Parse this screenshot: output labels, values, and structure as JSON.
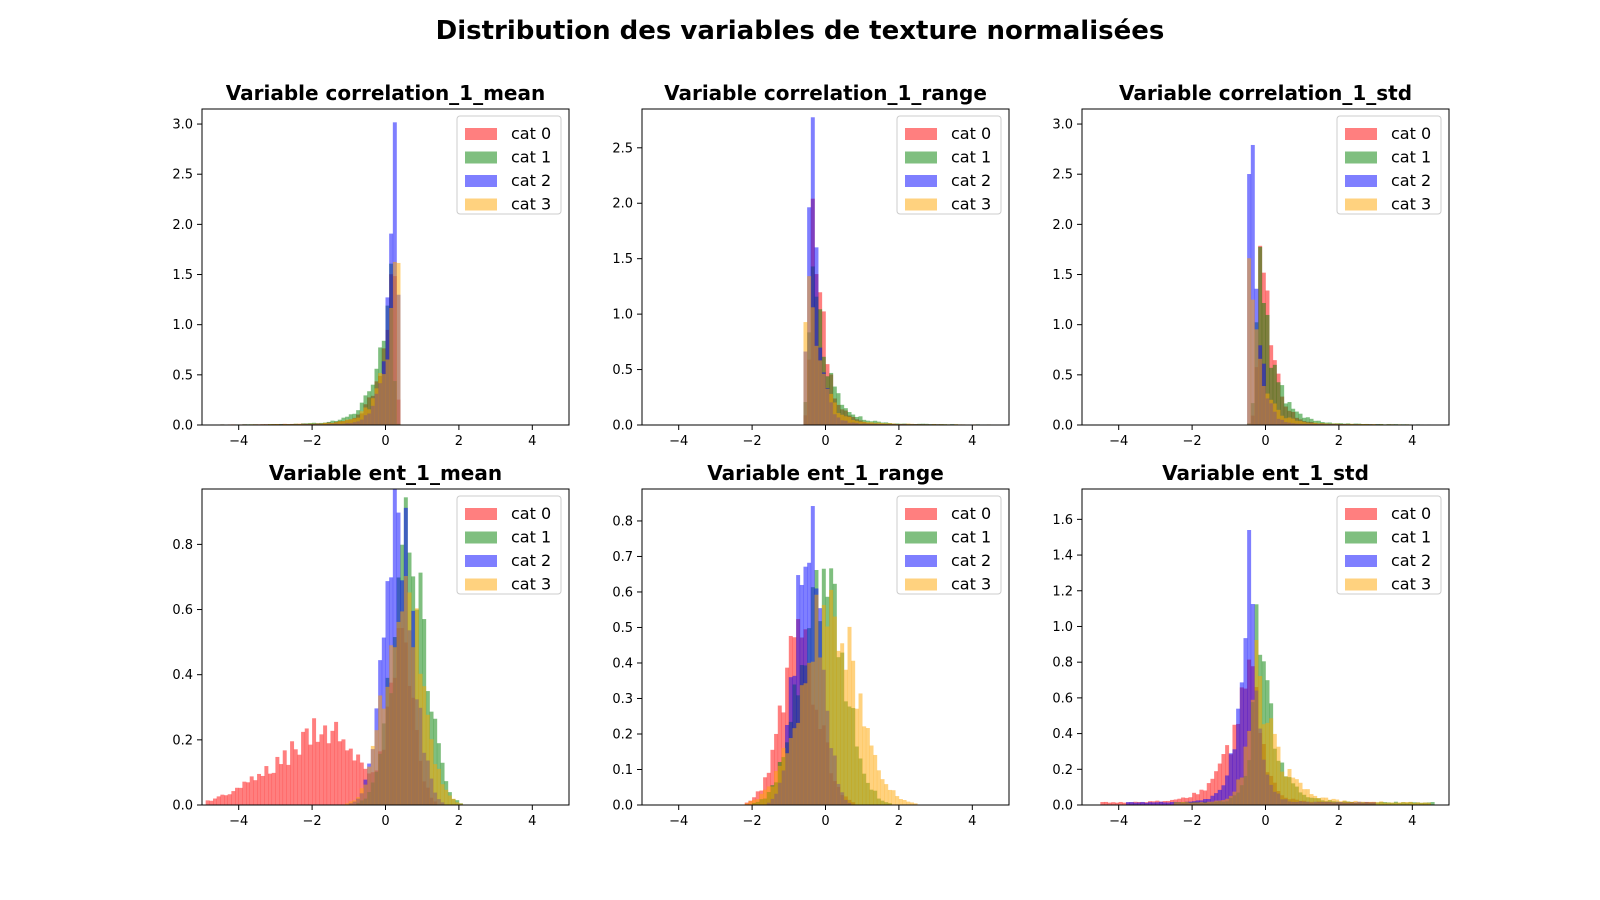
{
  "figure": {
    "title": "Distribution des variables de texture normalisées"
  },
  "colors": {
    "cat0": "#ff0000",
    "cat1": "#008000",
    "cat2": "#0000ff",
    "cat3": "#ffa500"
  },
  "legend_labels": [
    "cat 0",
    "cat 1",
    "cat 2",
    "cat 3"
  ],
  "chart_data": [
    {
      "type": "histogram",
      "title": "Variable correlation_1_mean",
      "xlim": [
        -5,
        5
      ],
      "ylim": [
        0,
        3.15
      ],
      "xticks": [
        -4,
        -2,
        0,
        2,
        4
      ],
      "yticks": [
        0.0,
        0.5,
        1.0,
        1.5,
        2.0,
        2.5,
        3.0
      ],
      "legend": "top-right",
      "series": [
        {
          "name": "cat 0",
          "dist": {
            "kind": "leftskew",
            "peak": 0.22,
            "height": 1.95,
            "cutoff": 0.42,
            "lscale": 0.5,
            "tail": 0.03,
            "tmin": -4.6
          }
        },
        {
          "name": "cat 1",
          "dist": {
            "kind": "leftskew",
            "peak": 0.15,
            "height": 1.55,
            "cutoff": 0.42,
            "lscale": 0.6,
            "tail": 0.03,
            "tmin": -4.6
          }
        },
        {
          "name": "cat 2",
          "dist": {
            "kind": "leftskew",
            "peak": 0.27,
            "height": 3.0,
            "cutoff": 0.42,
            "lscale": 0.35,
            "tail": 0.02,
            "tmin": -4.6
          }
        },
        {
          "name": "cat 3",
          "dist": {
            "kind": "leftskew",
            "peak": 0.35,
            "height": 1.75,
            "cutoff": 0.42,
            "lscale": 0.55,
            "tail": 0.03,
            "tmin": -4.6
          }
        }
      ]
    },
    {
      "type": "histogram",
      "title": "Variable correlation_1_range",
      "xlim": [
        -5,
        5
      ],
      "ylim": [
        0,
        2.85
      ],
      "xticks": [
        -4,
        -2,
        0,
        2,
        4
      ],
      "yticks": [
        0.0,
        0.5,
        1.0,
        1.5,
        2.0,
        2.5
      ],
      "legend": "top-right",
      "series": [
        {
          "name": "cat 0",
          "dist": {
            "kind": "rightskew",
            "peak": -0.3,
            "height": 2.0,
            "cutoff": -0.6,
            "rscale": 0.45,
            "tail": 0.02,
            "tmax": 4.8
          }
        },
        {
          "name": "cat 1",
          "dist": {
            "kind": "rightskew",
            "peak": -0.35,
            "height": 1.5,
            "cutoff": -0.6,
            "rscale": 0.6,
            "tail": 0.03,
            "tmax": 4.8
          }
        },
        {
          "name": "cat 2",
          "dist": {
            "kind": "rightskew",
            "peak": -0.38,
            "height": 2.72,
            "cutoff": -0.6,
            "rscale": 0.3,
            "tail": 0.02,
            "tmax": 4.8
          }
        },
        {
          "name": "cat 3",
          "dist": {
            "kind": "rightskew",
            "peak": -0.45,
            "height": 1.45,
            "cutoff": -0.6,
            "rscale": 0.5,
            "tail": 0.03,
            "tmax": 4.8
          }
        }
      ]
    },
    {
      "type": "histogram",
      "title": "Variable correlation_1_std",
      "xlim": [
        -5,
        5
      ],
      "ylim": [
        0,
        3.15
      ],
      "xticks": [
        -4,
        -2,
        0,
        2,
        4
      ],
      "yticks": [
        0.0,
        0.5,
        1.0,
        1.5,
        2.0,
        2.5,
        3.0
      ],
      "legend": "top-right",
      "series": [
        {
          "name": "cat 0",
          "dist": {
            "kind": "rightskew",
            "peak": -0.1,
            "height": 2.1,
            "cutoff": -0.55,
            "rscale": 0.45,
            "tail": 0.02,
            "tmax": 4.5
          }
        },
        {
          "name": "cat 1",
          "dist": {
            "kind": "rightskew",
            "peak": -0.15,
            "height": 1.55,
            "cutoff": -0.55,
            "rscale": 0.6,
            "tail": 0.03,
            "tmax": 4.5
          }
        },
        {
          "name": "cat 2",
          "dist": {
            "kind": "rightskew",
            "peak": -0.38,
            "height": 3.0,
            "cutoff": -0.55,
            "rscale": 0.3,
            "tail": 0.02,
            "tmax": 4.5
          }
        },
        {
          "name": "cat 3",
          "dist": {
            "kind": "rightskew",
            "peak": -0.45,
            "height": 1.55,
            "cutoff": -0.55,
            "rscale": 0.5,
            "tail": 0.03,
            "tmax": 4.5
          }
        }
      ]
    },
    {
      "type": "histogram",
      "title": "Variable ent_1_mean",
      "xlim": [
        -5,
        5
      ],
      "ylim": [
        0,
        0.97
      ],
      "xticks": [
        -4,
        -2,
        0,
        2,
        4
      ],
      "yticks": [
        0.0,
        0.2,
        0.4,
        0.6,
        0.8
      ],
      "legend": "top-right",
      "series": [
        {
          "name": "cat 0",
          "dist": {
            "kind": "mix",
            "comps": [
              [
                0.45,
                0.32,
                0.45
              ],
              [
                -1.5,
                0.9,
                0.22
              ],
              [
                -3.2,
                0.9,
                0.07
              ]
            ],
            "min": -4.9,
            "max": 1.8
          }
        },
        {
          "name": "cat 1",
          "dist": {
            "kind": "mix",
            "comps": [
              [
                0.65,
                0.45,
                0.8
              ]
            ],
            "min": -2.0,
            "max": 2.8
          }
        },
        {
          "name": "cat 2",
          "dist": {
            "kind": "mix",
            "comps": [
              [
                0.35,
                0.4,
                0.9
              ]
            ],
            "min": -2.0,
            "max": 1.8
          }
        },
        {
          "name": "cat 3",
          "dist": {
            "kind": "mix",
            "comps": [
              [
                0.5,
                0.5,
                0.65
              ]
            ],
            "min": -2.0,
            "max": 2.2
          }
        }
      ]
    },
    {
      "type": "histogram",
      "title": "Variable ent_1_range",
      "xlim": [
        -5,
        5
      ],
      "ylim": [
        0,
        0.89
      ],
      "xticks": [
        -4,
        -2,
        0,
        2,
        4
      ],
      "yticks": [
        0.0,
        0.1,
        0.2,
        0.3,
        0.4,
        0.5,
        0.6,
        0.7,
        0.8
      ],
      "legend": "top-right",
      "series": [
        {
          "name": "cat 0",
          "dist": {
            "kind": "mix",
            "comps": [
              [
                -0.7,
                0.5,
                0.46
              ]
            ],
            "min": -3.0,
            "max": 4.0
          }
        },
        {
          "name": "cat 1",
          "dist": {
            "kind": "mix",
            "comps": [
              [
                -0.1,
                0.6,
                0.64
              ]
            ],
            "min": -3.0,
            "max": 4.8
          }
        },
        {
          "name": "cat 2",
          "dist": {
            "kind": "mix",
            "comps": [
              [
                -0.45,
                0.35,
                0.85
              ]
            ],
            "min": -2.6,
            "max": 3.5
          }
        },
        {
          "name": "cat 3",
          "dist": {
            "kind": "mix",
            "comps": [
              [
                0.1,
                0.75,
                0.55
              ]
            ],
            "min": -4.0,
            "max": 4.5
          }
        }
      ]
    },
    {
      "type": "histogram",
      "title": "Variable ent_1_std",
      "xlim": [
        -5,
        5
      ],
      "ylim": [
        0,
        1.77
      ],
      "xticks": [
        -4,
        -2,
        0,
        2,
        4
      ],
      "yticks": [
        0.0,
        0.2,
        0.4,
        0.6,
        0.8,
        1.0,
        1.2,
        1.4,
        1.6
      ],
      "legend": "top-right",
      "series": [
        {
          "name": "cat 0",
          "dist": {
            "kind": "twoside",
            "peak": -0.4,
            "height": 1.0,
            "lscale": 0.7,
            "rscale": 0.4,
            "min": -4.5,
            "max": 3.0
          }
        },
        {
          "name": "cat 1",
          "dist": {
            "kind": "twoside",
            "peak": -0.2,
            "height": 1.2,
            "lscale": 0.25,
            "rscale": 0.55,
            "min": -2.5,
            "max": 4.6
          }
        },
        {
          "name": "cat 2",
          "dist": {
            "kind": "twoside",
            "peak": -0.45,
            "height": 1.68,
            "lscale": 0.35,
            "rscale": 0.3,
            "min": -3.8,
            "max": 3.0
          }
        },
        {
          "name": "cat 3",
          "dist": {
            "kind": "twoside",
            "peak": -0.3,
            "height": 0.9,
            "lscale": 0.3,
            "rscale": 0.75,
            "min": -2.5,
            "max": 4.5
          }
        }
      ]
    }
  ]
}
